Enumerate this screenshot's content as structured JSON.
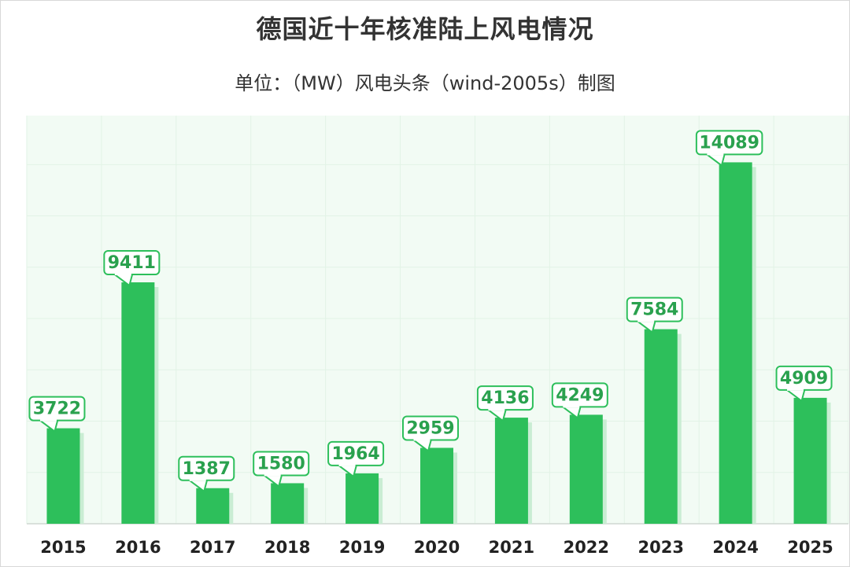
{
  "chart_data": {
    "type": "bar",
    "title": "德国近十年核准陆上风电情况",
    "subtitle": "单位：（MW）风电头条（wind-2005s）制图",
    "categories": [
      "2015",
      "2016",
      "2017",
      "2018",
      "2019",
      "2020",
      "2021",
      "2022",
      "2023",
      "2024",
      "2025"
    ],
    "values": [
      3722,
      9411,
      1387,
      1580,
      1964,
      2959,
      4136,
      4249,
      7584,
      14089,
      4909
    ],
    "xlabel": "",
    "ylabel": "MW",
    "ylim": [
      0,
      16000
    ],
    "grid": true,
    "legend": "none"
  },
  "colors": {
    "bar": "#2dbf5b",
    "bar_shadow": "#c9edd3",
    "label_text": "#2aa14e",
    "label_border": "#2dbf5b",
    "plot_bg": "#f2fbf4",
    "grid": "#e2f3e6"
  }
}
